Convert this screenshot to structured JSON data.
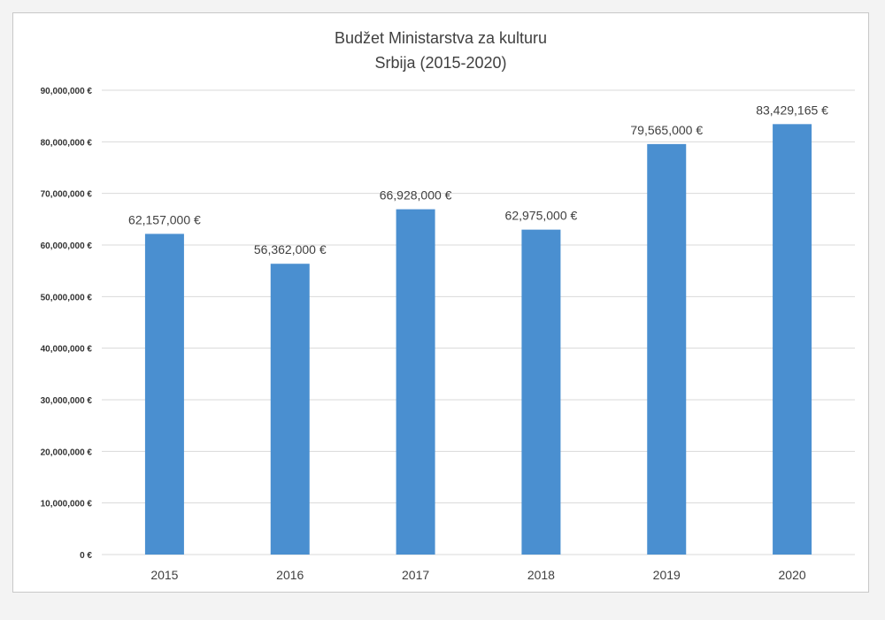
{
  "chart_data": {
    "type": "bar",
    "title": "Budžet Ministarstva za kulturu",
    "subtitle": "Srbija (2015-2020)",
    "categories": [
      "2015",
      "2016",
      "2017",
      "2018",
      "2019",
      "2020"
    ],
    "values": [
      62157000,
      56362000,
      66928000,
      62975000,
      79565000,
      83429165
    ],
    "data_labels": [
      "62,157,000 €",
      "56,362,000 €",
      "66,928,000 €",
      "62,975,000 €",
      "79,565,000 €",
      "83,429,165 €"
    ],
    "y_ticks": [
      0,
      10000000,
      20000000,
      30000000,
      40000000,
      50000000,
      60000000,
      70000000,
      80000000,
      90000000
    ],
    "y_tick_labels": [
      "0 €",
      "10,000,000 €",
      "20,000,000 €",
      "30,000,000 €",
      "40,000,000 €",
      "50,000,000 €",
      "60,000,000 €",
      "70,000,000 €",
      "80,000,000 €",
      "90,000,000 €"
    ],
    "ylim": [
      0,
      90000000
    ],
    "xlabel": "",
    "ylabel": "",
    "grid": true,
    "legend": "none",
    "colors": {
      "bar": "#4a8fd0",
      "grid": "#d9d9d9",
      "text": "#404040",
      "axis_text": "#333333"
    }
  }
}
